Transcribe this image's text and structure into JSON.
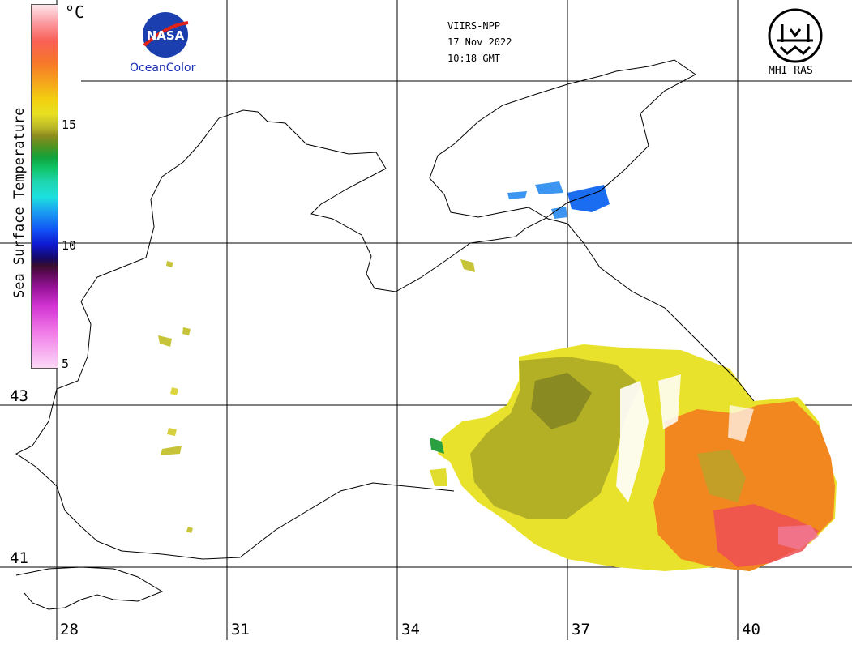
{
  "header": {
    "satellite": "VIIRS-NPP",
    "date": "17 Nov 2022",
    "time": "10:18 GMT"
  },
  "logos": {
    "left": {
      "wordmark": "NASA",
      "caption": "OceanColor"
    },
    "right": {
      "caption": "MHI RAS"
    }
  },
  "legend": {
    "title": "Sea Surface Temperature",
    "unit": "°C",
    "ticks": [
      "15",
      "10",
      "5"
    ]
  },
  "axes": {
    "longitude_labels": [
      "28",
      "31",
      "34",
      "37",
      "40"
    ],
    "latitude_labels": [
      "43",
      "41"
    ]
  },
  "colors": {
    "cold": "#1a6cf0",
    "olive": "#a9a726",
    "yellow": "#e9e22c",
    "orange": "#f2861f",
    "red": "#ee4f55",
    "gridline": "#000000"
  }
}
